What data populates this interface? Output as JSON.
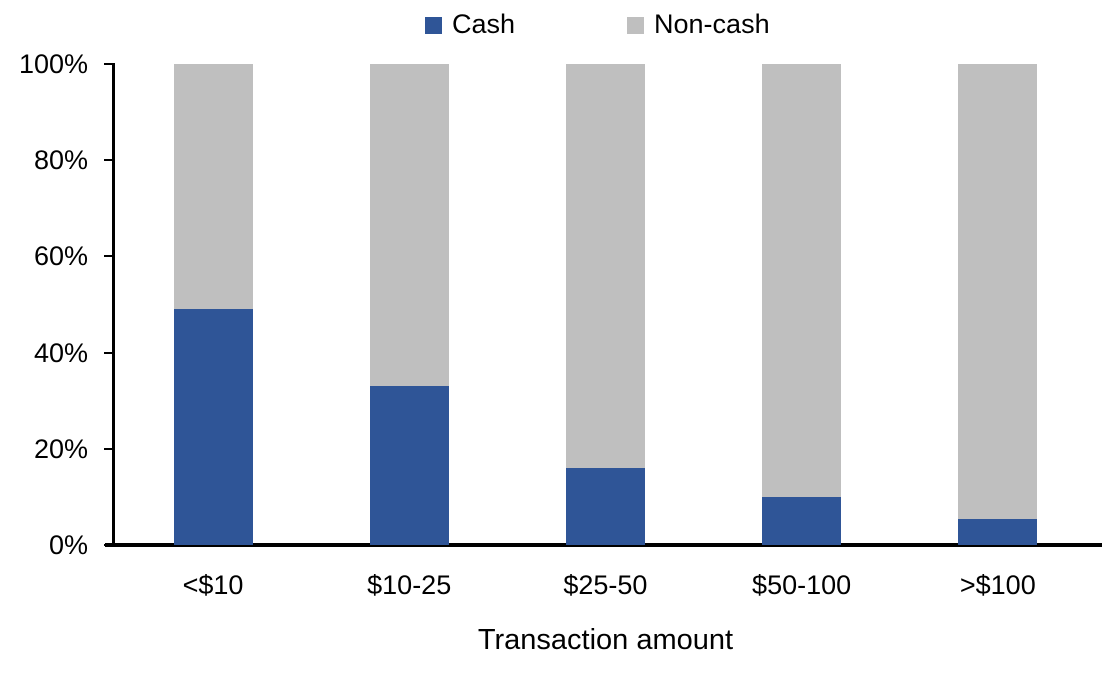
{
  "chart_data": {
    "type": "bar",
    "variant": "100%-stacked-column",
    "title": "",
    "xlabel": "Transaction amount",
    "ylabel": "",
    "categories": [
      "<$10",
      "$10-25",
      "$25-50",
      "$50-100",
      ">$100"
    ],
    "series": [
      {
        "name": "Cash",
        "color": "#2F5597",
        "values": [
          49,
          33,
          16,
          10,
          5.5
        ]
      },
      {
        "name": "Non-cash",
        "color": "#BFBFBF",
        "values": [
          51,
          67,
          84,
          90,
          94.5
        ]
      }
    ],
    "ylim": [
      0,
      100
    ],
    "y_tick_labels_top_to_bottom": [
      "100%",
      "80%",
      "60%",
      "40%",
      "20%",
      "0%"
    ],
    "grid": false,
    "legend_position": "top"
  },
  "legend": {
    "items": [
      {
        "label": "Cash",
        "color": "#2F5597"
      },
      {
        "label": "Non-cash",
        "color": "#BFBFBF"
      }
    ]
  },
  "axes": {
    "axis_color": "#000000",
    "text_color": "#000000"
  }
}
